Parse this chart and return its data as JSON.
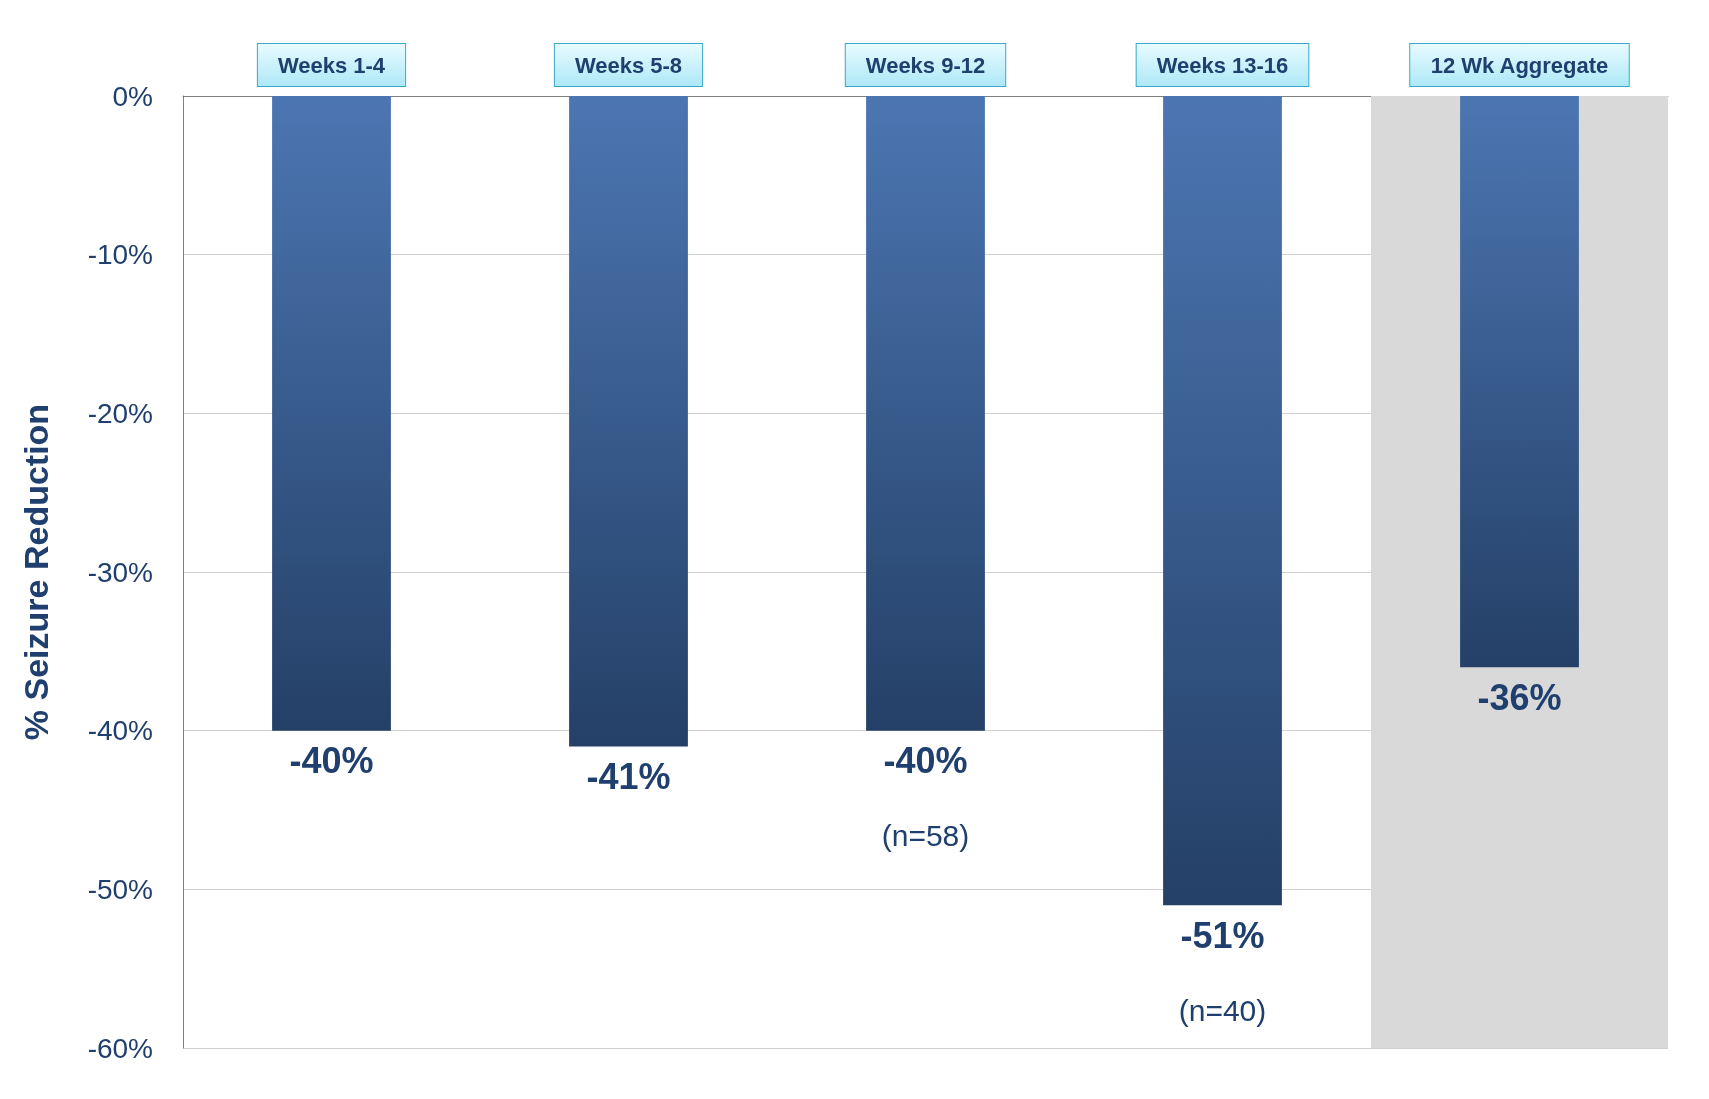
{
  "chart_data": {
    "type": "bar",
    "ylabel": "% Seizure Reduction",
    "categories": [
      "Weeks 1-4",
      "Weeks 5-8",
      "Weeks 9-12",
      "Weeks 13-16",
      "12 Wk Aggregate"
    ],
    "values": [
      -40,
      -41,
      -40,
      -51,
      -36
    ],
    "value_labels": [
      "-40%",
      "-41%",
      "-40%",
      "-51%",
      "-36%"
    ],
    "color": "#3c6aab",
    "ylim": [
      -60,
      0
    ],
    "yticks": [
      {
        "value": 0,
        "label": "0%"
      },
      {
        "value": -10,
        "label": "-10%"
      },
      {
        "value": -20,
        "label": "-20%"
      },
      {
        "value": -30,
        "label": "-30%"
      },
      {
        "value": -40,
        "label": "-40%"
      },
      {
        "value": -50,
        "label": "-50%"
      },
      {
        "value": -60,
        "label": "-60%"
      }
    ],
    "grid": "y",
    "bands": [
      {
        "axis": "x",
        "from": "12 Wk Aggregate",
        "to": "12 Wk Aggregate",
        "color": "#d9d9d9"
      }
    ],
    "annotations": [
      {
        "text": "(n=58)",
        "x": "Weeks 9-12",
        "y": -40
      },
      {
        "text": "(n=40)",
        "x": "Weeks 13-16",
        "y": -51
      }
    ]
  }
}
